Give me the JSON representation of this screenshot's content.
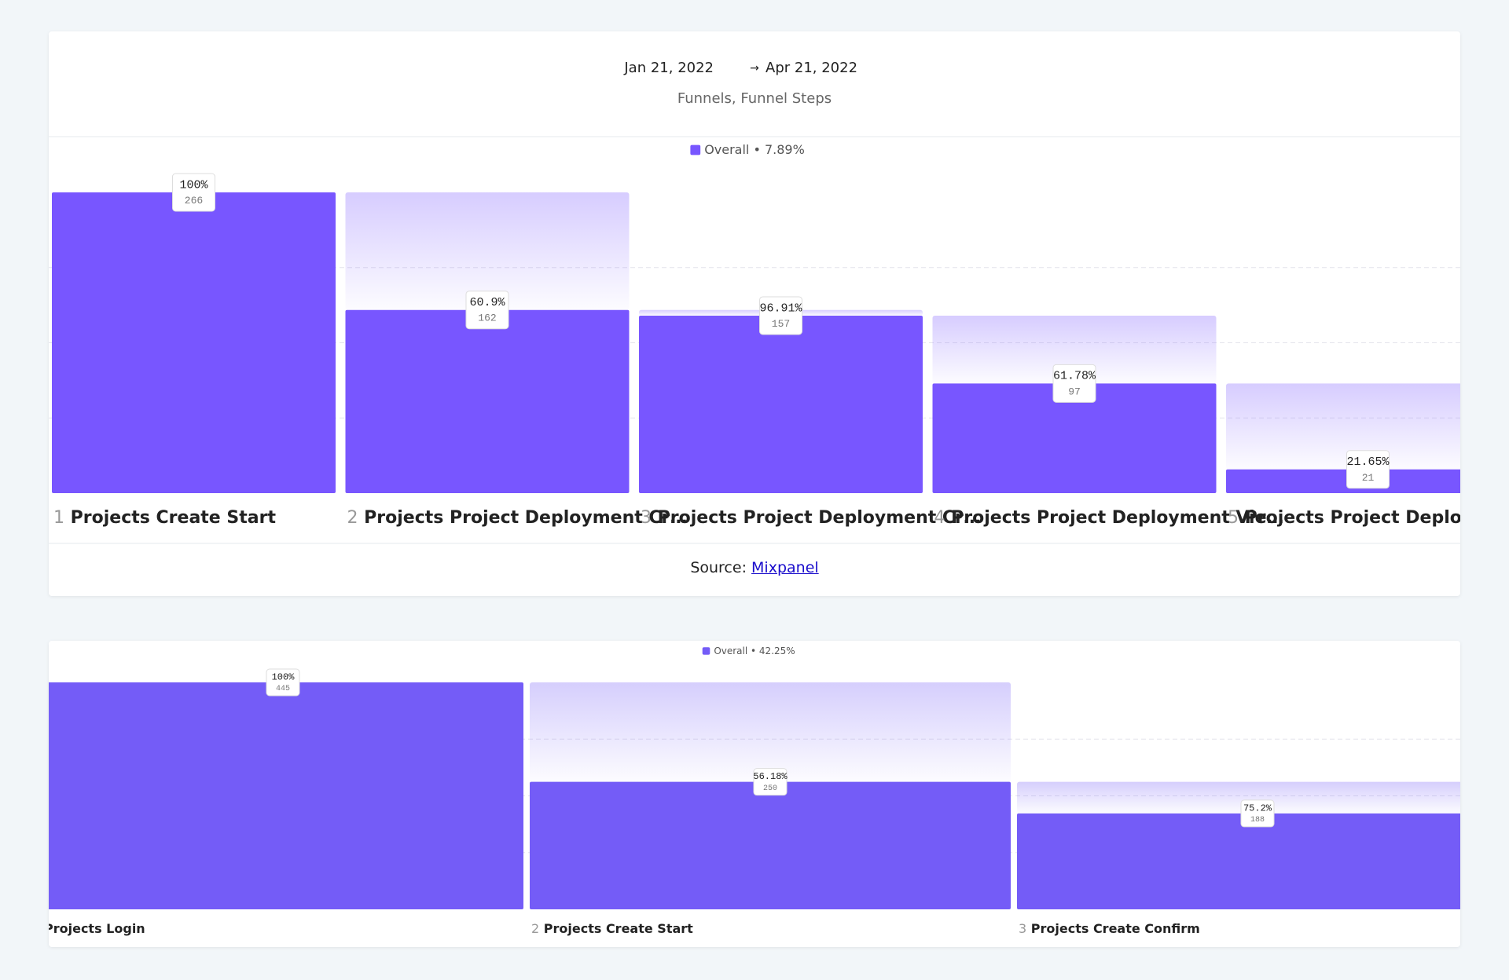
{
  "chart_data": [
    {
      "type": "funnel",
      "date_start": "Jan 21, 2022",
      "date_end": "Apr 21, 2022",
      "subtitle": "Funnels, Funnel Steps",
      "series_name": "Overall",
      "conversion": 7.89,
      "conversion_label": "7.89%",
      "color": "#7856ff",
      "step_numbers": [
        1,
        2,
        3,
        4,
        5
      ],
      "categories": [
        "Projects Create Start",
        "Projects Project Deployment Cr…",
        "Projects Project Deployment Cr…",
        "Projects Project Deployment Vie…",
        "Projects Project Deploymen"
      ],
      "values": [
        266,
        162,
        157,
        97,
        21
      ],
      "step_conversion": [
        100,
        60.9,
        96.91,
        61.78,
        21.65
      ],
      "step_conversion_labels": [
        "100%",
        "60.9%",
        "96.91%",
        "61.78%",
        "21.65%"
      ],
      "ylim": [
        0,
        266
      ],
      "ygrid": [
        66.5,
        133,
        199.5
      ],
      "source_label": "Source:",
      "source_link": "Mixpanel"
    },
    {
      "type": "funnel",
      "series_name": "Overall",
      "conversion": 42.25,
      "conversion_label": "42.25%",
      "color": "#745cf7",
      "step_numbers": [
        null,
        2,
        3
      ],
      "categories": [
        "Projects Login",
        "Projects Create Start",
        "Projects Create Confirm"
      ],
      "values": [
        445,
        250,
        188
      ],
      "step_conversion": [
        100,
        56.18,
        75.2
      ],
      "step_conversion_labels": [
        "100%",
        "56.18%",
        "75.2%"
      ],
      "ylim": [
        0,
        445
      ],
      "ygrid": [
        111.25,
        222.5,
        333.75
      ]
    }
  ]
}
